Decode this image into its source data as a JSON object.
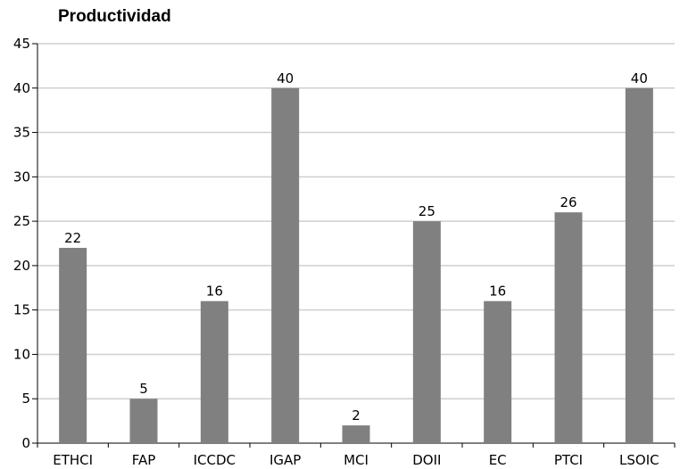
{
  "chart_data": {
    "type": "bar",
    "title": "Productividad",
    "xlabel": "",
    "ylabel": "",
    "categories": [
      "ETHCI",
      "FAP",
      "ICCDC",
      "IGAP",
      "MCI",
      "DOII",
      "EC",
      "PTCI",
      "LSOIC"
    ],
    "values": [
      22,
      5,
      16,
      40,
      2,
      25,
      16,
      26,
      40
    ],
    "ylim": [
      0,
      45
    ],
    "yticks": [
      0,
      5,
      10,
      15,
      20,
      25,
      30,
      35,
      40,
      45
    ],
    "grid": true,
    "data_labels": true,
    "bar_color": "#808080",
    "grid_color": "#cfcfcf"
  }
}
